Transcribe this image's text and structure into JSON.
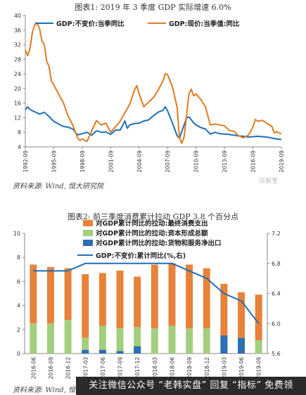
{
  "banner_text": "关注微信公众号 “老韩实盘” 回复 “指标” 免费领",
  "watermark": "诊股宝",
  "chart_data": [
    {
      "type": "line",
      "title": "图表1: 2019 年 3 季度 GDP 实际增速 6.0%",
      "source": "资料来源: Wind, 恒大研究院",
      "xlabel": "",
      "ylabel": "",
      "ylim": [
        4,
        40
      ],
      "yticks": [
        4,
        8,
        12,
        16,
        20,
        24,
        28,
        32,
        36,
        40
      ],
      "xtick_labels": [
        "1992-09",
        "1995-09",
        "1998-09",
        "2001-09",
        "2004-09",
        "2007-09",
        "2010-09",
        "2013-09",
        "2016-09",
        "2019-09"
      ],
      "legend_position": "top",
      "grid": false,
      "series": [
        {
          "name": "GDP:不变价:当季同比",
          "color": "#1f6fb5",
          "points": [
            [
              1992.75,
              14.2
            ],
            [
              1993.0,
              15.0
            ],
            [
              1993.25,
              14.2
            ],
            [
              1993.75,
              13.6
            ],
            [
              1994.25,
              13.0
            ],
            [
              1994.75,
              13.5
            ],
            [
              1995.25,
              12.3
            ],
            [
              1995.75,
              11.0
            ],
            [
              1996.25,
              10.3
            ],
            [
              1996.75,
              9.6
            ],
            [
              1997.25,
              9.4
            ],
            [
              1997.75,
              8.9
            ],
            [
              1998.25,
              7.3
            ],
            [
              1998.75,
              7.6
            ],
            [
              1999.25,
              8.0
            ],
            [
              1999.75,
              7.2
            ],
            [
              2000.25,
              8.4
            ],
            [
              2000.75,
              8.0
            ],
            [
              2001.25,
              8.1
            ],
            [
              2001.75,
              7.4
            ],
            [
              2002.25,
              8.6
            ],
            [
              2002.75,
              8.6
            ],
            [
              2003.25,
              11.1
            ],
            [
              2003.5,
              9.1
            ],
            [
              2003.75,
              10.0
            ],
            [
              2004.25,
              10.4
            ],
            [
              2004.75,
              10.5
            ],
            [
              2005.25,
              11.1
            ],
            [
              2005.75,
              11.4
            ],
            [
              2006.25,
              12.5
            ],
            [
              2006.75,
              13.5
            ],
            [
              2007.25,
              14.0
            ],
            [
              2007.5,
              15.0
            ],
            [
              2007.75,
              13.9
            ],
            [
              2008.25,
              10.6
            ],
            [
              2008.75,
              7.1
            ],
            [
              2009.0,
              6.4
            ],
            [
              2009.25,
              8.2
            ],
            [
              2009.75,
              11.9
            ],
            [
              2010.0,
              12.2
            ],
            [
              2010.5,
              10.6
            ],
            [
              2010.75,
              10.0
            ],
            [
              2011.25,
              9.3
            ],
            [
              2011.75,
              8.9
            ],
            [
              2012.25,
              7.5
            ],
            [
              2012.75,
              8.0
            ],
            [
              2013.25,
              7.6
            ],
            [
              2013.75,
              7.5
            ],
            [
              2014.25,
              7.4
            ],
            [
              2014.75,
              7.2
            ],
            [
              2015.25,
              7.0
            ],
            [
              2015.75,
              6.9
            ],
            [
              2016.25,
              6.7
            ],
            [
              2016.75,
              6.8
            ],
            [
              2017.25,
              6.9
            ],
            [
              2017.75,
              6.8
            ],
            [
              2018.25,
              6.7
            ],
            [
              2018.75,
              6.4
            ],
            [
              2019.25,
              6.2
            ],
            [
              2019.75,
              6.0
            ]
          ]
        },
        {
          "name": "GDP:现价:当季值:同比",
          "color": "#e07b20",
          "points": [
            [
              1992.75,
              30.5
            ],
            [
              1993.0,
              29.0
            ],
            [
              1993.25,
              31.0
            ],
            [
              1993.5,
              35.5
            ],
            [
              1993.75,
              37.5
            ],
            [
              1994.0,
              37.8
            ],
            [
              1994.25,
              36.5
            ],
            [
              1994.5,
              33.0
            ],
            [
              1994.75,
              32.0
            ],
            [
              1995.0,
              27.5
            ],
            [
              1995.25,
              26.0
            ],
            [
              1995.5,
              22.0
            ],
            [
              1995.75,
              21.0
            ],
            [
              1996.25,
              18.5
            ],
            [
              1996.75,
              16.2
            ],
            [
              1997.25,
              12.5
            ],
            [
              1997.75,
              10.0
            ],
            [
              1998.25,
              6.5
            ],
            [
              1998.5,
              5.8
            ],
            [
              1998.75,
              6.2
            ],
            [
              1999.25,
              5.5
            ],
            [
              1999.75,
              8.4
            ],
            [
              2000.25,
              11.2
            ],
            [
              2000.75,
              10.0
            ],
            [
              2001.25,
              10.5
            ],
            [
              2001.75,
              8.0
            ],
            [
              2002.25,
              9.5
            ],
            [
              2002.75,
              11.0
            ],
            [
              2003.25,
              13.4
            ],
            [
              2003.75,
              15.6
            ],
            [
              2004.25,
              19.5
            ],
            [
              2004.5,
              20.8
            ],
            [
              2004.75,
              18.5
            ],
            [
              2005.25,
              15.0
            ],
            [
              2005.75,
              16.3
            ],
            [
              2006.25,
              17.5
            ],
            [
              2006.75,
              19.5
            ],
            [
              2007.25,
              22.0
            ],
            [
              2007.5,
              24.0
            ],
            [
              2007.75,
              23.8
            ],
            [
              2008.25,
              20.5
            ],
            [
              2008.75,
              15.0
            ],
            [
              2009.0,
              6.5
            ],
            [
              2009.25,
              5.0
            ],
            [
              2009.5,
              6.8
            ],
            [
              2009.75,
              12.5
            ],
            [
              2010.0,
              18.5
            ],
            [
              2010.25,
              19.8
            ],
            [
              2010.5,
              18.0
            ],
            [
              2010.75,
              18.5
            ],
            [
              2011.25,
              17.0
            ],
            [
              2011.75,
              15.0
            ],
            [
              2012.25,
              10.0
            ],
            [
              2012.75,
              10.3
            ],
            [
              2013.25,
              10.0
            ],
            [
              2013.75,
              9.8
            ],
            [
              2014.25,
              8.5
            ],
            [
              2014.75,
              8.3
            ],
            [
              2015.25,
              7.0
            ],
            [
              2015.75,
              6.5
            ],
            [
              2016.25,
              7.2
            ],
            [
              2016.5,
              8.2
            ],
            [
              2016.75,
              9.5
            ],
            [
              2017.0,
              11.5
            ],
            [
              2017.25,
              11.0
            ],
            [
              2017.75,
              11.3
            ],
            [
              2018.25,
              10.4
            ],
            [
              2018.75,
              9.6
            ],
            [
              2019.0,
              7.8
            ],
            [
              2019.25,
              8.2
            ],
            [
              2019.5,
              7.8
            ],
            [
              2019.75,
              7.6
            ]
          ]
        }
      ]
    },
    {
      "type": "bar",
      "title": "图表2: 前三季度消费累计拉动 GDP 3.8 个百分点",
      "source": "资料来源: Wind, 恒大研究院",
      "categories": [
        "2016-06",
        "2016-09",
        "2016-12",
        "2017-03",
        "2017-06",
        "2017-09",
        "2017-12",
        "2018-03",
        "2018-06",
        "2018-09",
        "2018-12",
        "2019-03",
        "2019-06",
        "2019-09"
      ],
      "ylim": [
        0,
        10
      ],
      "yticks": [
        0,
        2,
        4,
        6,
        8,
        10
      ],
      "y2lim": [
        5.6,
        7.2
      ],
      "y2ticks": [
        5.6,
        6.0,
        6.4,
        6.8,
        7.2
      ],
      "legend_position": "top",
      "grid": false,
      "series": [
        {
          "name": "对GDP累计同比的拉动:最终消费支出",
          "color": "#e8823a",
          "values": [
            4.9,
            4.7,
            4.3,
            5.3,
            4.4,
            4.8,
            4.2,
            5.3,
            5.2,
            5.3,
            5.0,
            4.9,
            3.8,
            3.8
          ]
        },
        {
          "name": "对GDP累计同比的拉动:资本形成总额",
          "color": "#a3cf7d",
          "values": [
            2.5,
            2.5,
            2.8,
            1.3,
            2.3,
            2.1,
            2.2,
            2.1,
            2.3,
            2.1,
            2.1,
            0.9,
            1.3,
            1.1
          ]
        },
        {
          "name": "对GDP累计同比的拉动:货物和服务净出口",
          "color": "#2e6eb3",
          "values": [
            0,
            0,
            0,
            0.3,
            0.3,
            0.2,
            0.6,
            0,
            0,
            0,
            0,
            1.5,
            1.3,
            0
          ]
        },
        {
          "name": "GDP:不变价:累计同比(%,右)",
          "color": "#1f6fb5",
          "type": "line",
          "axis": "right",
          "values": [
            6.7,
            6.7,
            6.7,
            6.8,
            6.8,
            6.8,
            6.8,
            6.8,
            6.8,
            6.7,
            6.6,
            6.4,
            6.3,
            6.0
          ]
        }
      ]
    }
  ]
}
